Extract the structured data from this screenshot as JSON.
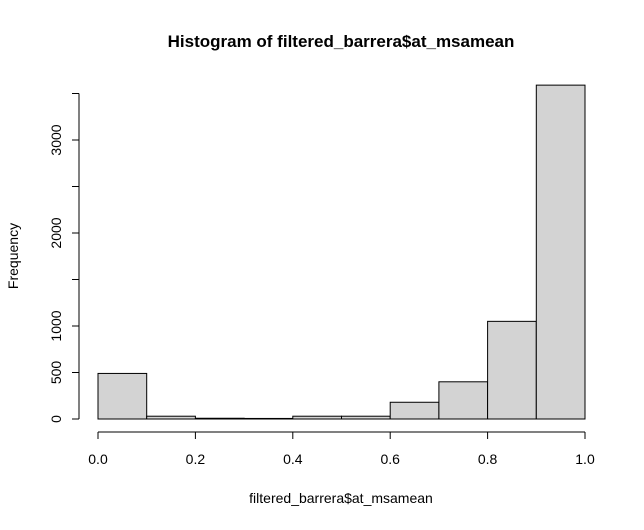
{
  "chart_data": {
    "type": "bar",
    "subtype": "histogram",
    "title": "Histogram of filtered_barrera$at_msamean",
    "xlabel": "filtered_barrera$at_msamean",
    "ylabel": "Frequency",
    "bins": [
      {
        "x0": 0.0,
        "x1": 0.1,
        "count": 490
      },
      {
        "x0": 0.1,
        "x1": 0.2,
        "count": 30
      },
      {
        "x0": 0.2,
        "x1": 0.3,
        "count": 8
      },
      {
        "x0": 0.3,
        "x1": 0.4,
        "count": 6
      },
      {
        "x0": 0.4,
        "x1": 0.5,
        "count": 30
      },
      {
        "x0": 0.5,
        "x1": 0.6,
        "count": 30
      },
      {
        "x0": 0.6,
        "x1": 0.7,
        "count": 180
      },
      {
        "x0": 0.7,
        "x1": 0.8,
        "count": 400
      },
      {
        "x0": 0.8,
        "x1": 0.9,
        "count": 1050
      },
      {
        "x0": 0.9,
        "x1": 1.0,
        "count": 3590
      }
    ],
    "xlim": [
      0.0,
      1.0
    ],
    "ylim": [
      0,
      3590
    ],
    "x_ticks": [
      "0.0",
      "0.2",
      "0.4",
      "0.6",
      "0.8",
      "1.0"
    ],
    "y_ticks": [
      "0",
      "500",
      "1000",
      "2000",
      "3000"
    ],
    "colors": {
      "bar_fill": "#d3d3d3",
      "bar_stroke": "#000000"
    },
    "grid": false,
    "legend": "none"
  }
}
